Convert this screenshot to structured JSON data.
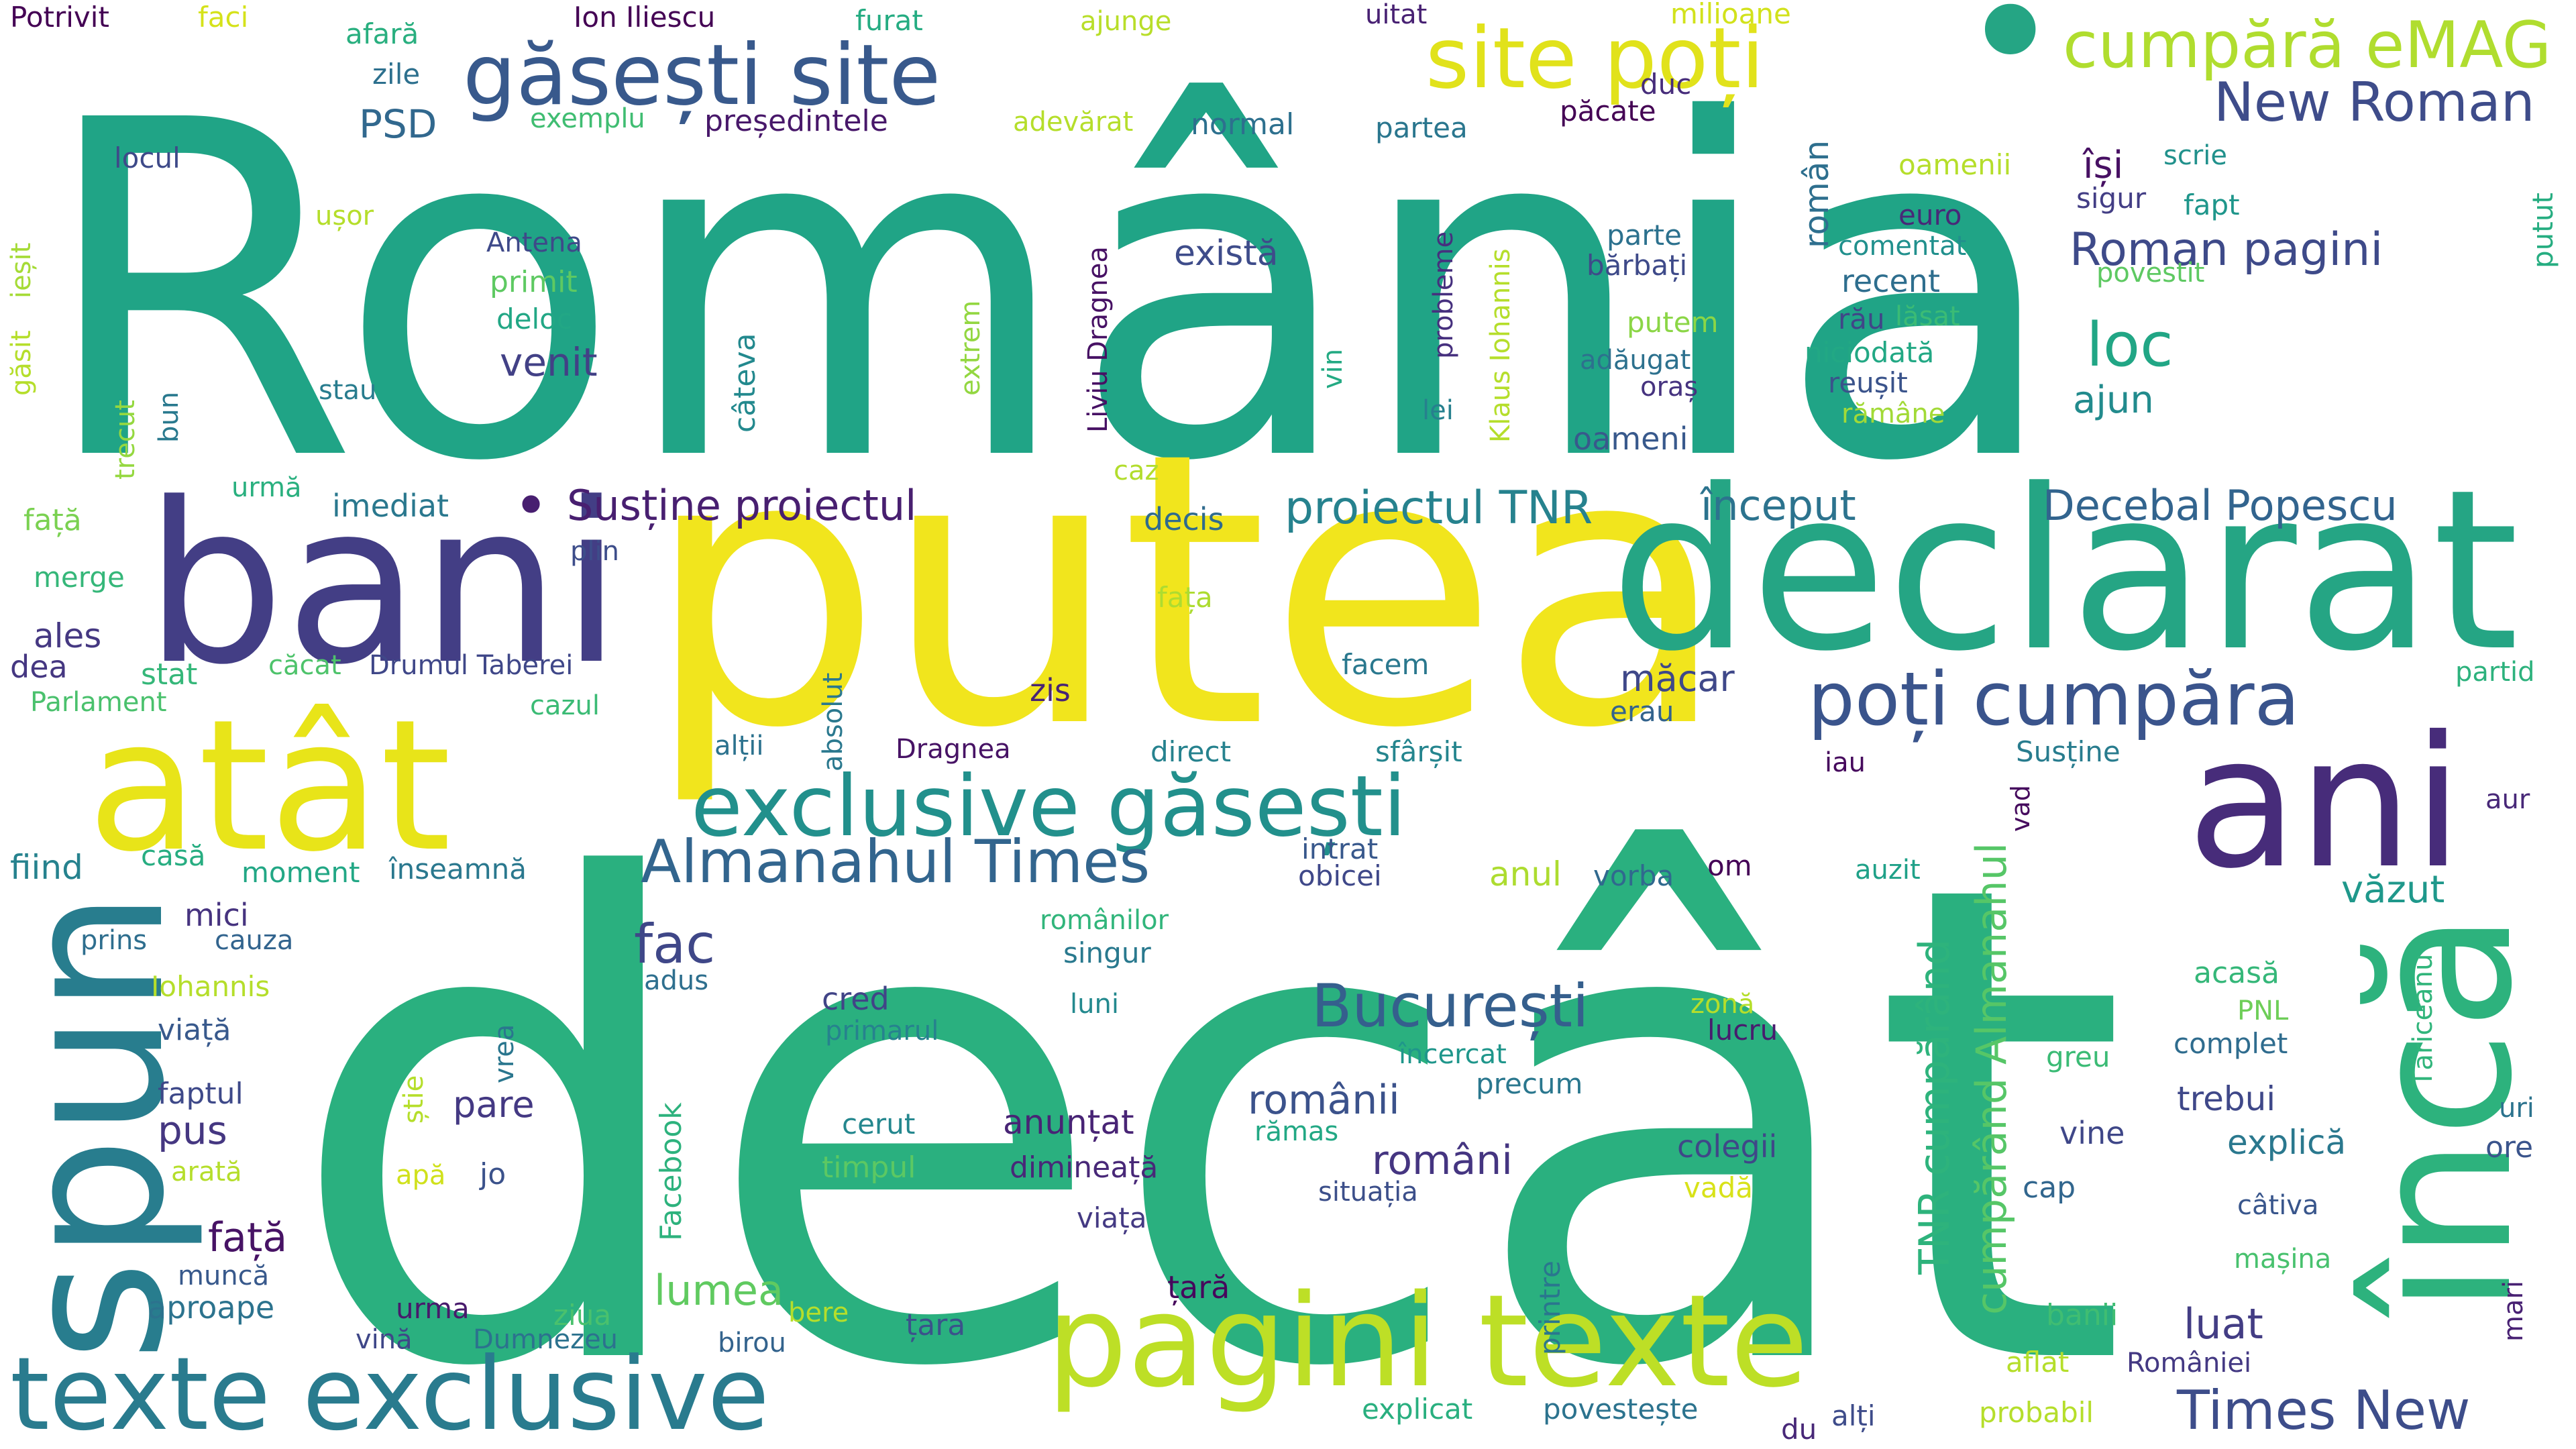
{
  "colors": {
    "background": "#ffffff",
    "palette": [
      "#440154",
      "#482878",
      "#3e4989",
      "#31688e",
      "#26828e",
      "#1f9e89",
      "#35b779",
      "#6ece58",
      "#b5de2b",
      "#fde725"
    ]
  },
  "words": [
    {
      "text": "România",
      "color": "#20a486"
    },
    {
      "text": "decât",
      "color": "#2ab07f"
    },
    {
      "text": "putea",
      "color": "#f1e51d"
    },
    {
      "text": "declarat",
      "color": "#25a584"
    },
    {
      "text": "bani",
      "color": "#433e85"
    },
    {
      "text": "atât",
      "color": "#e8e419"
    },
    {
      "text": "ani",
      "color": "#472c7a"
    },
    {
      "text": "încă",
      "color": "#2db27d"
    },
    {
      "text": "spun",
      "color": "#287d8e"
    },
    {
      "text": "pagini texte",
      "color": "#bddf26"
    },
    {
      "text": "texte exclusive",
      "color": "#297b8e"
    },
    {
      "text": "exclusive găsești",
      "color": "#22908c"
    },
    {
      "text": "găsești site",
      "color": "#38598c"
    },
    {
      "text": "site poți",
      "color": "#e1e21b"
    },
    {
      "text": "cumpără eMAG",
      "color": "#b0dd2f"
    },
    {
      "text": "•",
      "color": "#25a584"
    },
    {
      "text": "poți cumpăra",
      "color": "#3a548c"
    },
    {
      "text": "Almanahul Times",
      "color": "#32658e"
    },
    {
      "text": "București",
      "color": "#355f8d"
    },
    {
      "text": "New Roman",
      "color": "#3e4c8a"
    },
    {
      "text": "Times New",
      "color": "#3d4d8a"
    },
    {
      "text": "Roman pagini",
      "color": "#3e4a89"
    },
    {
      "text": "Susține proiectul",
      "color": "#481f70"
    },
    {
      "text": "•",
      "color": "#481f70"
    },
    {
      "text": "proiectul TNR",
      "color": "#26828e"
    },
    {
      "text": "început",
      "color": "#2c738e"
    },
    {
      "text": "Decebal Popescu",
      "color": "#32648e"
    },
    {
      "text": "TNR cumpărând",
      "color": "#2eb37c"
    },
    {
      "text": "cumpărând Almanahul",
      "color": "#56c667"
    },
    {
      "text": "loc",
      "color": "#21a685"
    },
    {
      "text": "fac",
      "color": "#3f4788"
    },
    {
      "text": "românii",
      "color": "#3b528b"
    },
    {
      "text": "români",
      "color": "#453581"
    },
    {
      "text": "există",
      "color": "#3e4c8a"
    },
    {
      "text": "venit",
      "color": "#424186"
    },
    {
      "text": "măcar",
      "color": "#3f4889"
    },
    {
      "text": "ajun",
      "color": "#228b8d"
    },
    {
      "text": "lumea",
      "color": "#60ca60"
    },
    {
      "text": "luat",
      "color": "#433d84"
    },
    {
      "text": "văzut",
      "color": "#1f988b"
    },
    {
      "text": "pare",
      "color": "#443983"
    },
    {
      "text": "pus",
      "color": "#453781"
    },
    {
      "text": "mici",
      "color": "#46337f"
    },
    {
      "text": "anunțat",
      "color": "#482475"
    },
    {
      "text": "față",
      "color": "#471365"
    },
    {
      "text": "PSD",
      "color": "#31688e"
    },
    {
      "text": "Ion Iliescu",
      "color": "#440154"
    },
    {
      "text": "președintele",
      "color": "#48186a"
    },
    {
      "text": "exemplu",
      "color": "#40bd72"
    },
    {
      "text": "zile",
      "color": "#2d708e"
    },
    {
      "text": "afară",
      "color": "#29af7f"
    },
    {
      "text": "furat",
      "color": "#25ac82"
    },
    {
      "text": "ajunge",
      "color": "#b8de29"
    },
    {
      "text": "uitat",
      "color": "#482173"
    },
    {
      "text": "milioane",
      "color": "#d2e21b"
    },
    {
      "text": "duc",
      "color": "#472d7b"
    },
    {
      "text": "păcate",
      "color": "#440154"
    },
    {
      "text": "partea",
      "color": "#2a768e"
    },
    {
      "text": "normal",
      "color": "#2d708e"
    },
    {
      "text": "adevărat",
      "color": "#b5de2b"
    },
    {
      "text": "oamenii",
      "color": "#b5de2b"
    },
    {
      "text": "își",
      "color": "#471063"
    },
    {
      "text": "român",
      "color": "#2e6f8e"
    },
    {
      "text": "scrie",
      "color": "#21918c"
    },
    {
      "text": "sigur",
      "color": "#433e85"
    },
    {
      "text": "fapt",
      "color": "#1f968b"
    },
    {
      "text": "putut",
      "color": "#26ad81"
    },
    {
      "text": "euro",
      "color": "#482878"
    },
    {
      "text": "comentat",
      "color": "#21908d"
    },
    {
      "text": "recent",
      "color": "#2e6e8e"
    },
    {
      "text": "povestit",
      "color": "#5ec962"
    },
    {
      "text": "rău",
      "color": "#404688"
    },
    {
      "text": "lăsat",
      "color": "#3bbb75"
    },
    {
      "text": "niciodată",
      "color": "#22a884"
    },
    {
      "text": "reușit",
      "color": "#3a538b"
    },
    {
      "text": "rămâne",
      "color": "#a2da37"
    },
    {
      "text": "parte",
      "color": "#2c718e"
    },
    {
      "text": "bărbați",
      "color": "#3e4a89"
    },
    {
      "text": "putem",
      "color": "#8bd646"
    },
    {
      "text": "adăugat",
      "color": "#2d718e"
    },
    {
      "text": "oraș",
      "color": "#46337f"
    },
    {
      "text": "oameni",
      "color": "#38598c"
    },
    {
      "text": "probleme",
      "color": "#46307e"
    },
    {
      "text": "Klaus Iohannis",
      "color": "#b5de2b"
    },
    {
      "text": "lei",
      "color": "#27808e"
    },
    {
      "text": "vin",
      "color": "#24aa83"
    },
    {
      "text": "Liviu Dragnea",
      "color": "#471164"
    },
    {
      "text": "extrem",
      "color": "#93d741"
    },
    {
      "text": "câteva",
      "color": "#23898e"
    },
    {
      "text": "Antena",
      "color": "#3e4989"
    },
    {
      "text": "primit",
      "color": "#5ec962"
    },
    {
      "text": "deloc",
      "color": "#22a785"
    },
    {
      "text": "stau",
      "color": "#287c8e"
    },
    {
      "text": "Potrivit",
      "color": "#440154"
    },
    {
      "text": "faci",
      "color": "#d5e21a"
    },
    {
      "text": "locul",
      "color": "#3e4a89"
    },
    {
      "text": "ușor",
      "color": "#b5de2b"
    },
    {
      "text": "găsit",
      "color": "#b5de2b"
    },
    {
      "text": "ieșit",
      "color": "#a5db36"
    },
    {
      "text": "trecut",
      "color": "#95d840"
    },
    {
      "text": "bun",
      "color": "#29798e"
    },
    {
      "text": "urmă",
      "color": "#2ab07f"
    },
    {
      "text": "caz",
      "color": "#b2dd2d"
    },
    {
      "text": "imediat",
      "color": "#2a788e"
    },
    {
      "text": "decis",
      "color": "#2f6b8e"
    },
    {
      "text": "față",
      "color": "#7ad151"
    },
    {
      "text": "fața",
      "color": "#addc30"
    },
    {
      "text": "plin",
      "color": "#3d4d8a"
    },
    {
      "text": "merge",
      "color": "#35b779"
    },
    {
      "text": "ales",
      "color": "#453882"
    },
    {
      "text": "dea",
      "color": "#453781"
    },
    {
      "text": "stat",
      "color": "#35b779"
    },
    {
      "text": "căcat",
      "color": "#4ec36b"
    },
    {
      "text": "Drumul Taberei",
      "color": "#3f4788"
    },
    {
      "text": "Parlament",
      "color": "#4ac16d"
    },
    {
      "text": "cazul",
      "color": "#3bbb75"
    },
    {
      "text": "absolut",
      "color": "#2a788e"
    },
    {
      "text": "facem",
      "color": "#2a788e"
    },
    {
      "text": "zis",
      "color": "#482475"
    },
    {
      "text": "erau",
      "color": "#33638d"
    },
    {
      "text": "alții",
      "color": "#2c728e"
    },
    {
      "text": "Dragnea",
      "color": "#471365"
    },
    {
      "text": "direct",
      "color": "#26828e"
    },
    {
      "text": "sfârșit",
      "color": "#25858e"
    },
    {
      "text": "iau",
      "color": "#460a5d"
    },
    {
      "text": "Susține",
      "color": "#287c8e"
    },
    {
      "text": "vad",
      "color": "#460b5e"
    },
    {
      "text": "aur",
      "color": "#482878"
    },
    {
      "text": "partid",
      "color": "#2db27d"
    },
    {
      "text": "fiind",
      "color": "#26828e"
    },
    {
      "text": "casă",
      "color": "#27ad81"
    },
    {
      "text": "moment",
      "color": "#22a785"
    },
    {
      "text": "înseamnă",
      "color": "#2a788e"
    },
    {
      "text": "intrat",
      "color": "#38588c"
    },
    {
      "text": "obicei",
      "color": "#3f4889"
    },
    {
      "text": "anul",
      "color": "#addc30"
    },
    {
      "text": "vorba",
      "color": "#30698e"
    },
    {
      "text": "om",
      "color": "#440256"
    },
    {
      "text": "auzit",
      "color": "#1fa188"
    },
    {
      "text": "Tăriceanu",
      "color": "#31b57b"
    },
    {
      "text": "prins",
      "color": "#2e6e8e"
    },
    {
      "text": "cauza",
      "color": "#32648e"
    },
    {
      "text": "Iohannis",
      "color": "#b5de2b"
    },
    {
      "text": "românilor",
      "color": "#31b57b"
    },
    {
      "text": "singur",
      "color": "#29798e"
    },
    {
      "text": "adus",
      "color": "#2e6f8e"
    },
    {
      "text": "luni",
      "color": "#23898e"
    },
    {
      "text": "cred",
      "color": "#414487"
    },
    {
      "text": "primarul",
      "color": "#26828e"
    },
    {
      "text": "zonă",
      "color": "#b5de2b"
    },
    {
      "text": "lucru",
      "color": "#481c6e"
    },
    {
      "text": "acasă",
      "color": "#35b779"
    },
    {
      "text": "PNL",
      "color": "#6ece58"
    },
    {
      "text": "complet",
      "color": "#2f6c8e"
    },
    {
      "text": "greu",
      "color": "#3bbb75"
    },
    {
      "text": "viață",
      "color": "#38598c"
    },
    {
      "text": "faptul",
      "color": "#3e4989"
    },
    {
      "text": "Facebook",
      "color": "#2db27d"
    },
    {
      "text": "știe",
      "color": "#b5de2b"
    },
    {
      "text": "vrea",
      "color": "#2a768e"
    },
    {
      "text": "încercat",
      "color": "#1f968b"
    },
    {
      "text": "precum",
      "color": "#2a778e"
    },
    {
      "text": "trebui",
      "color": "#3f4889"
    },
    {
      "text": "uri",
      "color": "#2c738e"
    },
    {
      "text": "ore",
      "color": "#3a548c"
    },
    {
      "text": "explică",
      "color": "#2a788e"
    },
    {
      "text": "vine",
      "color": "#3f4788"
    },
    {
      "text": "cerut",
      "color": "#24878e"
    },
    {
      "text": "timpul",
      "color": "#5cc863"
    },
    {
      "text": "dimineață",
      "color": "#482878"
    },
    {
      "text": "rămas",
      "color": "#22a884"
    },
    {
      "text": "situația",
      "color": "#3c4f8a"
    },
    {
      "text": "colegii",
      "color": "#3f4788"
    },
    {
      "text": "vadă",
      "color": "#d8e219"
    },
    {
      "text": "cap",
      "color": "#31668e"
    },
    {
      "text": "câtiva",
      "color": "#39568c"
    },
    {
      "text": "arată",
      "color": "#b5de2b"
    },
    {
      "text": "apă",
      "color": "#d0e11c"
    },
    {
      "text": "jo",
      "color": "#3b528b"
    },
    {
      "text": "viața",
      "color": "#443a83"
    },
    {
      "text": "printre",
      "color": "#2a768e"
    },
    {
      "text": "muncă",
      "color": "#38598c"
    },
    {
      "text": "aproape",
      "color": "#2c738e"
    },
    {
      "text": "țară",
      "color": "#46085c"
    },
    {
      "text": "mașina",
      "color": "#48c16e"
    },
    {
      "text": "banii",
      "color": "#40bd72"
    },
    {
      "text": "mari",
      "color": "#482173"
    },
    {
      "text": "urma",
      "color": "#481a6c"
    },
    {
      "text": "ziua",
      "color": "#4ac16d"
    },
    {
      "text": "bere",
      "color": "#b5de2b"
    },
    {
      "text": "țara",
      "color": "#3b528b"
    },
    {
      "text": "vină",
      "color": "#3f4788"
    },
    {
      "text": "Dumnezeu",
      "color": "#2c728e"
    },
    {
      "text": "birou",
      "color": "#33638d"
    },
    {
      "text": "aflat",
      "color": "#b5de2b"
    },
    {
      "text": "României",
      "color": "#443983"
    },
    {
      "text": "explicat",
      "color": "#29af7f"
    },
    {
      "text": "povestește",
      "color": "#2c738e"
    },
    {
      "text": "du",
      "color": "#482878"
    },
    {
      "text": "alți",
      "color": "#3e4c8a"
    },
    {
      "text": "probabil",
      "color": "#b5de2b"
    }
  ]
}
